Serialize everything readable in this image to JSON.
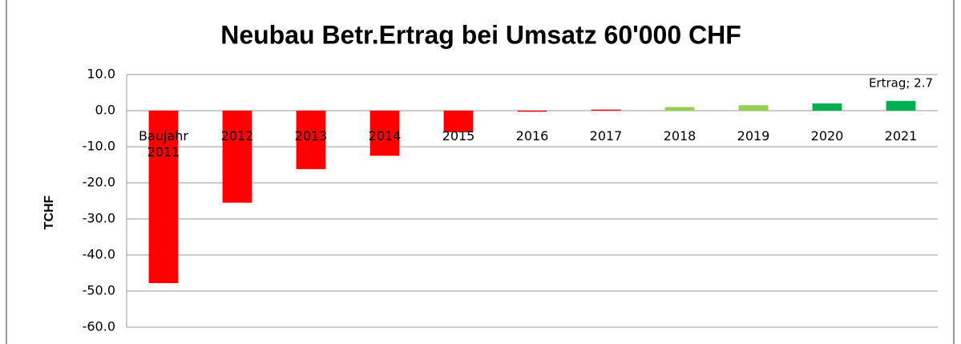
{
  "chart_data": {
    "type": "bar",
    "title": "Neubau Betr.Ertrag bei Umsatz 60'000 CHF",
    "y_label": "TCHF",
    "categories": [
      "Baujahr 2011",
      "2012",
      "2013",
      "2014",
      "2015",
      "2016",
      "2017",
      "2018",
      "2019",
      "2020",
      "2021"
    ],
    "values": [
      -47.8,
      -25.5,
      -16.2,
      -12.5,
      -6.0,
      -0.3,
      0.3,
      1.0,
      1.5,
      2.0,
      2.7
    ],
    "value_labels": [
      null,
      null,
      null,
      null,
      null,
      null,
      null,
      null,
      null,
      null,
      "Ertrag; 2.7"
    ],
    "colors": [
      "#ff0000",
      "#ff0000",
      "#ff0000",
      "#ff0000",
      "#ff0000",
      "#ff0000",
      "#ff0000",
      "#92d050",
      "#92d050",
      "#00b050",
      "#00b050"
    ],
    "ylim": [
      -60,
      10
    ],
    "yticks": [
      {
        "value": -60,
        "label": "-60.0"
      },
      {
        "value": -50,
        "label": "-50.0"
      },
      {
        "value": -40,
        "label": "-40.0"
      },
      {
        "value": -30,
        "label": "-30.0"
      },
      {
        "value": -20,
        "label": "-20.0"
      },
      {
        "value": -10,
        "label": "-10.0"
      },
      {
        "value": 0,
        "label": "0.0"
      },
      {
        "value": 10,
        "label": "10.0"
      }
    ],
    "grid": true
  }
}
